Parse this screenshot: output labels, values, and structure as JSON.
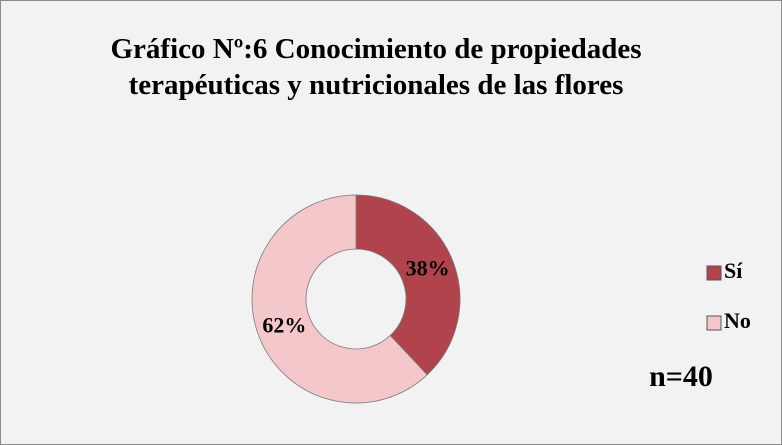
{
  "chart_data": {
    "type": "doughnut",
    "title": "Gráfico Nº:6 Conocimiento de propiedades terapéuticas y nutricionales de las flores",
    "categories": [
      "Sí",
      "No"
    ],
    "values": [
      38,
      62
    ],
    "value_labels": [
      "38%",
      "62%"
    ],
    "colors": [
      "#b0434b",
      "#f4c7cb"
    ],
    "legend": "right",
    "annotation": "n=40"
  }
}
